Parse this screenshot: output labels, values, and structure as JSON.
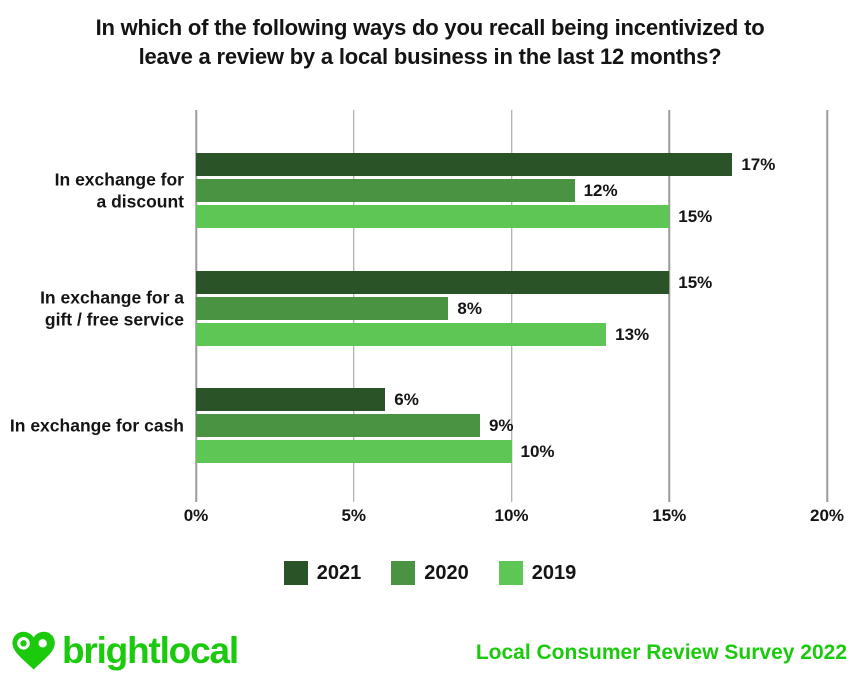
{
  "title": "In which of the following ways do you recall being incentivized to\nleave a review by a local business in the last 12 months?",
  "chart_data": {
    "type": "bar",
    "orientation": "horizontal",
    "title": "In which of the following ways do you recall being incentivized to leave a review by a local business in the last 12 months?",
    "categories": [
      "In exchange for\na discount",
      "In exchange for a\ngift / free service",
      "In exchange for cash"
    ],
    "series": [
      {
        "name": "2021",
        "color": "#2a5327",
        "values": [
          17,
          15,
          6
        ]
      },
      {
        "name": "2020",
        "color": "#4a9342",
        "values": [
          12,
          8,
          9
        ]
      },
      {
        "name": "2019",
        "color": "#5ec654",
        "values": [
          15,
          13,
          10
        ]
      }
    ],
    "xlim": [
      0,
      20
    ],
    "x_tick_values": [
      0,
      5,
      10,
      15,
      20
    ],
    "x_ticks": [
      "0%",
      "5%",
      "10%",
      "15%",
      "20%"
    ],
    "value_suffix": "%",
    "grid": "vertical",
    "gridline_color": "#9b9b9b",
    "legend_position": "bottom",
    "data_labels": true
  },
  "footer": {
    "brand_name": "brightlocal",
    "brand_color": "#1bc90d",
    "source_text": "Local Consumer Review Survey 2022"
  }
}
